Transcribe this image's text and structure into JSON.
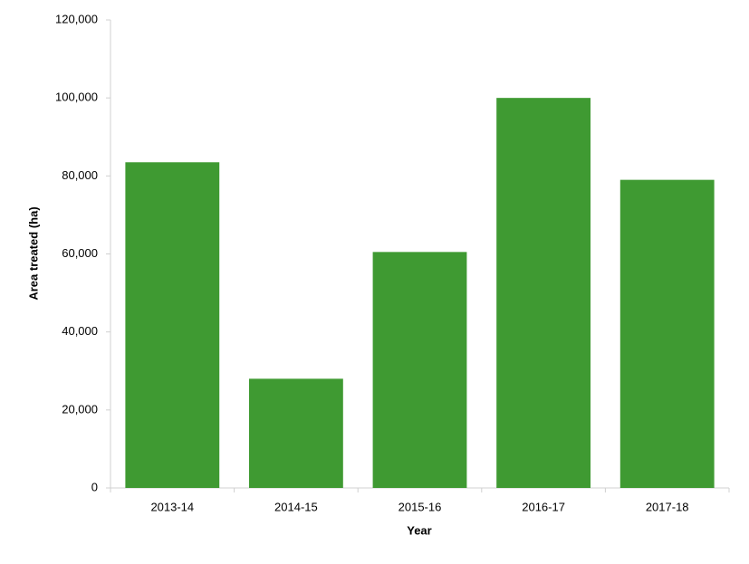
{
  "chart_data": {
    "type": "bar",
    "x_label": "Year",
    "y_label": "Area treated (ha)",
    "categories": [
      "2013-14",
      "2014-15",
      "2015-16",
      "2016-17",
      "2017-18"
    ],
    "values": [
      83500,
      28000,
      60500,
      100000,
      79000
    ],
    "color": "#3f9a32",
    "ylim": [
      0,
      120000
    ],
    "yticks": [
      0,
      {
        "value": 20000,
        "label": "20,000"
      },
      {
        "value": 40000,
        "label": "40,000"
      },
      {
        "value": 60000,
        "label": "60,000"
      },
      {
        "value": 80000,
        "label": "80,000"
      },
      {
        "value": 100000,
        "label": "100,000"
      },
      {
        "value": 120000,
        "label": "120,000"
      }
    ]
  }
}
